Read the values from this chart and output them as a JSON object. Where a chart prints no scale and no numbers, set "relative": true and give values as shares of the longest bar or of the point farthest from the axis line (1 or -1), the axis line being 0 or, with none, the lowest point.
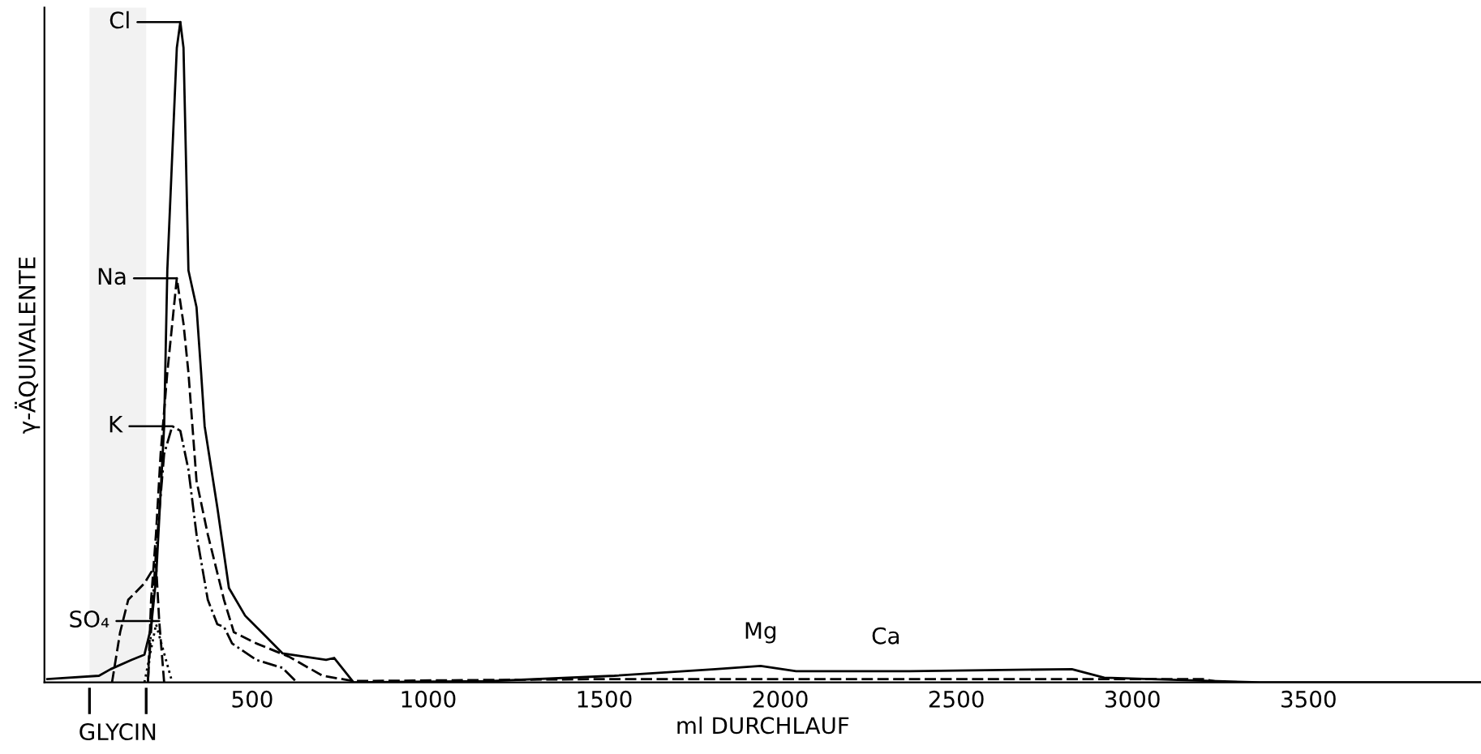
{
  "chart_data": {
    "type": "line",
    "relative": true,
    "xlabel": "ml DURCHLAUF",
    "ylabel": "γ-ÄQUIVALENTE",
    "xlim": [
      -90,
      3990
    ],
    "xticks": [
      500,
      1000,
      1500,
      2000,
      2500,
      3000,
      3500
    ],
    "grid": false,
    "series": [
      {
        "color": "#000000",
        "line_style": "solid",
        "x": [
          -82,
          65,
          98,
          157,
          194,
          213,
          227,
          250,
          259,
          286,
          296,
          305,
          319,
          342,
          355,
          365,
          401,
          434,
          480,
          540,
          586,
          710,
          733,
          788,
          1170,
          1529,
          1815,
          1944,
          2045,
          2367,
          2828,
          2920,
          3362,
          3988
        ],
        "values": [
          0.005,
          0.01,
          0.02,
          0.034,
          0.042,
          0.084,
          0.157,
          0.388,
          0.624,
          0.961,
          1.0,
          0.961,
          0.624,
          0.568,
          0.469,
          0.388,
          0.265,
          0.143,
          0.101,
          0.069,
          0.044,
          0.034,
          0.037,
          0,
          0.002,
          0.01,
          0.02,
          0.025,
          0.017,
          0.017,
          0.02,
          0.007,
          0,
          0
        ]
      },
      {
        "color": "#000000",
        "line_style": "dashed",
        "x": [
          204,
          213,
          227,
          240,
          259,
          286,
          305,
          319,
          342,
          374,
          420,
          448,
          512,
          604,
          700,
          788,
          1500,
          3200,
          3250
        ],
        "values": [
          0,
          0.125,
          0.226,
          0.346,
          0.469,
          0.612,
          0.543,
          0.469,
          0.305,
          0.224,
          0.125,
          0.076,
          0.059,
          0.039,
          0.01,
          0.002,
          0.005,
          0.005,
          0
        ]
      },
      {
        "color": "#000000",
        "line_style": "dashdot",
        "x": [
          204,
          227,
          250,
          273,
          296,
          319,
          342,
          374,
          401,
          420,
          443,
          512,
          586,
          627
        ],
        "values": [
          0.002,
          0.199,
          0.346,
          0.388,
          0.381,
          0.322,
          0.224,
          0.125,
          0.088,
          0.084,
          0.059,
          0.034,
          0.022,
          0
        ]
      },
      {
        "color": "#000000",
        "line_style": "dashed",
        "x": [
          102,
          125,
          148,
          194,
          227,
          236,
          250
        ],
        "values": [
          0,
          0.076,
          0.125,
          0.15,
          0.179,
          0.093,
          0
        ]
      },
      {
        "color": "#000000",
        "line_style": "dotted",
        "x": [
          194,
          227,
          273
        ],
        "values": [
          0,
          0.088,
          0
        ]
      }
    ],
    "bands": [
      {
        "axis": "x",
        "from": 38,
        "to": 199,
        "label": "GLYCIN",
        "color": "#f2f2f2"
      }
    ],
    "annotations": [
      {
        "text": "Cl",
        "x": 296,
        "y": 1.0
      },
      {
        "text": "Na",
        "x": 286,
        "y": 0.612
      },
      {
        "text": "K",
        "x": 273,
        "y": 0.388
      },
      {
        "text": "SO₄",
        "x": 236,
        "y": 0.093
      },
      {
        "text": "Mg",
        "x": 1944,
        "y": 0.025
      },
      {
        "text": "Ca",
        "x": 2300,
        "y": 0.017
      }
    ]
  }
}
